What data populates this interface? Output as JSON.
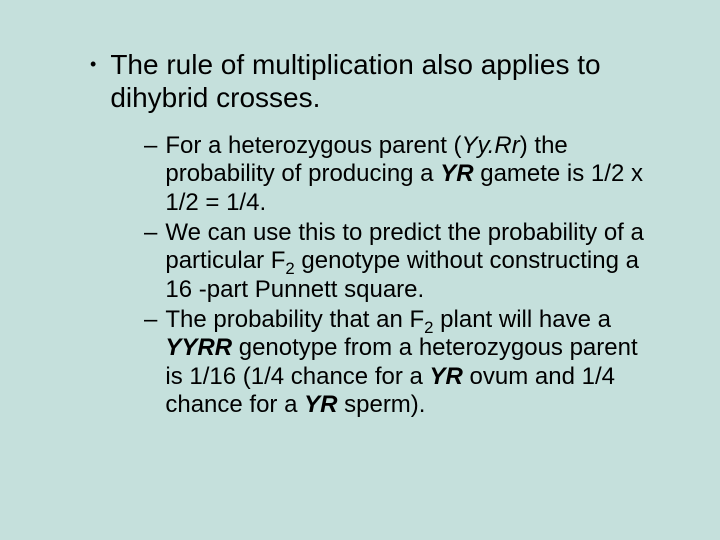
{
  "slide": {
    "background_color": "#c5e0dc",
    "text_color": "#000000",
    "main_fontsize": 28,
    "sub_fontsize": 24,
    "main_bullet": {
      "marker": "•",
      "text_plain": "The rule of multiplication also applies to dihybrid crosses."
    },
    "sub_bullets": [
      {
        "marker": "–",
        "text_plain": "For a heterozygous parent (Yy.Rr) the probability of producing a YR gamete is 1/2 x 1/2 = 1/4.",
        "runs": [
          {
            "t": "For a heterozygous parent (",
            "style": "normal"
          },
          {
            "t": "Yy.Rr",
            "style": "italic"
          },
          {
            "t": ") the probability of producing a ",
            "style": "normal"
          },
          {
            "t": "YR",
            "style": "bolditalic"
          },
          {
            "t": " gamete is 1/2 x 1/2 = 1/4.",
            "style": "normal"
          }
        ]
      },
      {
        "marker": "–",
        "text_plain": "We can use this to predict the probability of a particular F2 genotype without constructing a 16-part Punnett square.",
        "runs": [
          {
            "t": "We can use this to predict the probability of a particular F",
            "style": "normal"
          },
          {
            "t": "2",
            "style": "sub"
          },
          {
            "t": " genotype without constructing a 16 -part Punnett square.",
            "style": "normal"
          }
        ]
      },
      {
        "marker": "–",
        "text_plain": "The probability that an F2 plant will have a YYRR genotype from a heterozygous parent is 1/16 (1/4 chance for a YR ovum and 1/4 chance for a YR sperm).",
        "runs": [
          {
            "t": "The probability that an F",
            "style": "normal"
          },
          {
            "t": "2",
            "style": "sub"
          },
          {
            "t": " plant will have a ",
            "style": "normal"
          },
          {
            "t": "YYRR",
            "style": "bolditalic"
          },
          {
            "t": " genotype from a heterozygous parent is 1/16 (1/4 chance for a ",
            "style": "normal"
          },
          {
            "t": "YR",
            "style": "bolditalic"
          },
          {
            "t": " ovum and 1/4 chance for a ",
            "style": "normal"
          },
          {
            "t": "YR",
            "style": "bolditalic"
          },
          {
            "t": " sperm).",
            "style": "normal"
          }
        ]
      }
    ]
  }
}
